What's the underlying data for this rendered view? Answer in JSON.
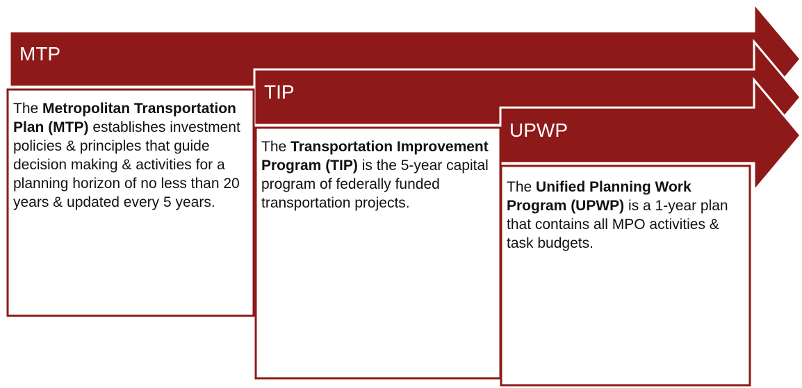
{
  "stages": [
    {
      "label": "MTP",
      "intro": "The ",
      "term": "Metropolitan Transportation Plan (MTP)",
      "rest": " establishes investment policies & principles that guide decision making & activities for a planning horizon of no less than 20 years & updated every 5 years."
    },
    {
      "label": "TIP",
      "intro": "The ",
      "term": "Transportation Improvement Program (TIP)",
      "rest": " is the 5-year capital program of federally funded transportation projects."
    },
    {
      "label": "UPWP",
      "intro": "The ",
      "term": "Unified Planning Work Program (UPWP)",
      "rest": " is a 1-year plan that contains all MPO activities & task budgets."
    }
  ]
}
